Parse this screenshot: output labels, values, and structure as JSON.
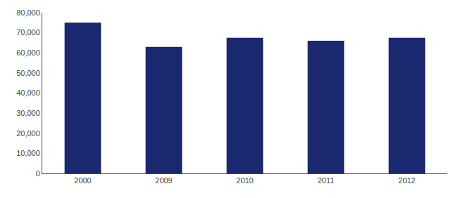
{
  "chart_data": {
    "type": "bar",
    "categories": [
      "2000",
      "2009",
      "2010",
      "2011",
      "2012"
    ],
    "values": [
      75000,
      63000,
      67500,
      66000,
      67500
    ],
    "color": "#1a2870",
    "ylim": [
      0,
      80000
    ],
    "yticks": [
      0,
      {
        "value": 10000,
        "label": "10,000"
      },
      {
        "value": 20000,
        "label": "20,000"
      },
      {
        "value": 30000,
        "label": "30,000"
      },
      {
        "value": 40000,
        "label": "40,000"
      },
      {
        "value": 50000,
        "label": "50,000"
      },
      {
        "value": 60000,
        "label": "60,000"
      },
      {
        "value": 70000,
        "label": "70,000"
      },
      {
        "value": 80000,
        "label": "80,000"
      }
    ],
    "grid": false
  }
}
